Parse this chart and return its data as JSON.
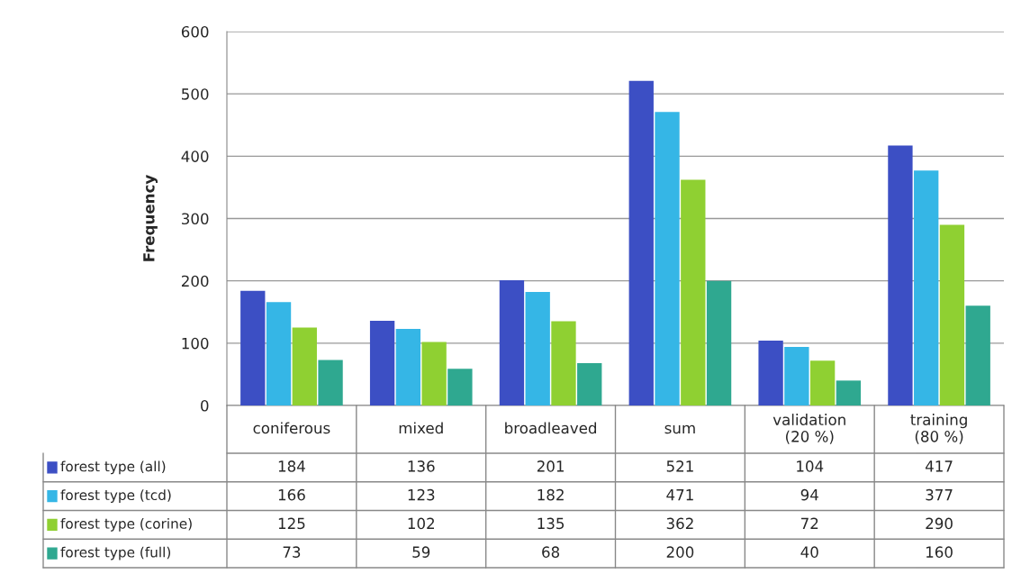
{
  "chart_data": {
    "type": "bar",
    "ylabel": "Frequency",
    "categories": [
      "coniferous",
      "mixed",
      "broadleaved",
      "sum",
      "validation\n(20 %)",
      "training\n(80 %)"
    ],
    "series": [
      {
        "name": "forest type (all)",
        "color": "#3c4fc4",
        "values": [
          184,
          136,
          201,
          521,
          104,
          417
        ]
      },
      {
        "name": "forest type (tcd)",
        "color": "#35b6e6",
        "values": [
          166,
          123,
          182,
          471,
          94,
          377
        ]
      },
      {
        "name": "forest type (corine)",
        "color": "#8fd032",
        "values": [
          125,
          102,
          135,
          362,
          72,
          290
        ]
      },
      {
        "name": "forest type (full)",
        "color": "#2fa890",
        "values": [
          73,
          59,
          68,
          200,
          40,
          160
        ]
      }
    ],
    "ylim": [
      0,
      600
    ],
    "yticks": [
      0,
      100,
      200,
      300,
      400,
      500,
      600
    ],
    "grid": "y",
    "data_labels": true,
    "legend": "bottom left"
  }
}
